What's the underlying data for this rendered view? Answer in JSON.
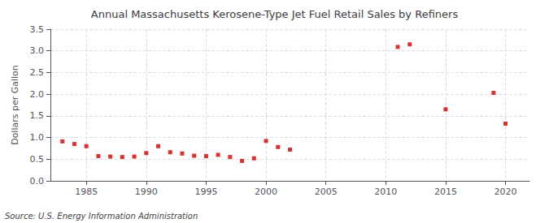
{
  "chart_data": {
    "type": "scatter",
    "title": "Annual Massachusetts Kerosene-Type Jet Fuel Retail Sales by Refiners",
    "ylabel": "Dollars per Gallon",
    "annotations": [
      "Source: U.S. Energy Information Administration"
    ],
    "x": [
      1983,
      1984,
      1985,
      1986,
      1987,
      1988,
      1989,
      1990,
      1991,
      1992,
      1993,
      1994,
      1995,
      1996,
      1997,
      1998,
      1999,
      2000,
      2001,
      2002,
      2011,
      2012,
      2015,
      2019,
      2020
    ],
    "values": [
      0.91,
      0.85,
      0.8,
      0.57,
      0.56,
      0.55,
      0.56,
      0.64,
      0.8,
      0.66,
      0.63,
      0.58,
      0.57,
      0.6,
      0.55,
      0.46,
      0.52,
      0.92,
      0.78,
      0.72,
      3.09,
      3.15,
      1.65,
      2.03,
      1.32
    ],
    "color": "#cc0000",
    "marker": "square",
    "xlim": [
      1982,
      2022
    ],
    "xticks": [
      1985,
      1990,
      1995,
      2000,
      2005,
      2010,
      2015,
      2020
    ],
    "ylim": [
      0.0,
      3.5
    ],
    "yticks": [
      {
        "value": 0.0,
        "label": "0.0"
      },
      0.5,
      {
        "value": 1.0,
        "label": "1.0"
      },
      1.5,
      {
        "value": 2.0,
        "label": "2.0"
      },
      2.5,
      {
        "value": 3.0,
        "label": "3.0"
      },
      3.5
    ],
    "grid": true
  }
}
